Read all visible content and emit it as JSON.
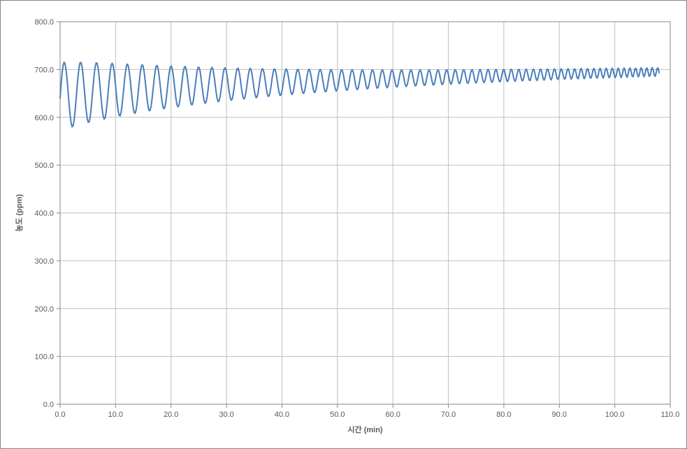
{
  "chart": {
    "type": "line",
    "background_color": "#ffffff",
    "outer_border_color": "#868686",
    "plot_border_color": "#868686",
    "grid_color": "#bfbfbf",
    "axis_line_color": "#868686",
    "series_color": "#4a7ebb",
    "line_width": 2,
    "xlabel": "시간 (min)",
    "ylabel": "농도 (ppm)",
    "label_fontsize": 11,
    "tick_fontsize": 11,
    "tick_color": "#595959",
    "xlim": [
      0,
      110
    ],
    "ylim": [
      0,
      800
    ],
    "xtick_step": 10,
    "ytick_step": 100,
    "xticks": [
      "0.0",
      "10.0",
      "20.0",
      "30.0",
      "40.0",
      "50.0",
      "60.0",
      "70.0",
      "80.0",
      "90.0",
      "100.0",
      "110.0"
    ],
    "yticks": [
      "0.0",
      "100.0",
      "200.0",
      "300.0",
      "400.0",
      "500.0",
      "600.0",
      "700.0",
      "800.0"
    ],
    "series": {
      "baseline_start": 640,
      "baseline_end": 695,
      "amp_start": 72,
      "amp_end": 6,
      "period_start": 3.0,
      "period_end": 1.7,
      "x_start": 0,
      "x_end": 108,
      "n_points": 600
    }
  }
}
